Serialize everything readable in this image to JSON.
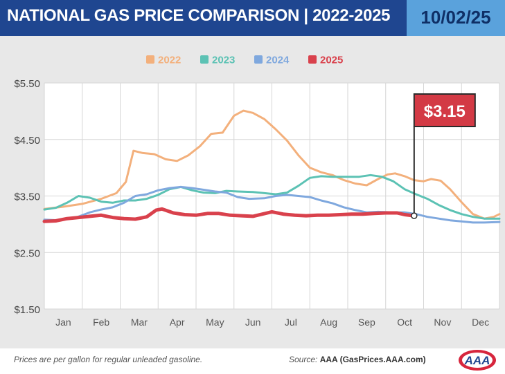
{
  "header": {
    "title": "NATIONAL GAS PRICE COMPARISON | 2022-2025",
    "date": "10/02/25"
  },
  "footer": {
    "note": "Prices are per gallon for regular unleaded gasoline.",
    "source_prefix": "Source:",
    "source_name": "AAA (GasPrices.AAA.com)",
    "logo_text": "AAA"
  },
  "colors": {
    "header_bg": "#1f4690",
    "date_bg": "#5aa2dc",
    "callout_bg": "#d33a45",
    "2022": "#f3b07c",
    "2023": "#5cc2b4",
    "2024": "#7fa8de",
    "2025": "#d9414c"
  },
  "chart_data": {
    "type": "line",
    "title": "",
    "xlabel": "",
    "ylabel": "",
    "categories": [
      "Jan",
      "Feb",
      "Mar",
      "Apr",
      "May",
      "Jun",
      "Jul",
      "Aug",
      "Sep",
      "Oct",
      "Nov",
      "Dec"
    ],
    "yticks": [
      "$5.50",
      "$4.50",
      "$3.50",
      "$2.50",
      "$1.50"
    ],
    "ylim": [
      1.5,
      5.5
    ],
    "legend_position": "top",
    "grid": true,
    "callout": {
      "label": "$3.15",
      "value": 3.15,
      "month": 9.75
    },
    "series": [
      {
        "name": "2022",
        "color": "#f3b07c",
        "points": [
          [
            0,
            3.27
          ],
          [
            0.5,
            3.31
          ],
          [
            1.0,
            3.36
          ],
          [
            1.5,
            3.45
          ],
          [
            1.9,
            3.55
          ],
          [
            2.15,
            3.75
          ],
          [
            2.35,
            4.3
          ],
          [
            2.6,
            4.26
          ],
          [
            2.9,
            4.24
          ],
          [
            3.2,
            4.15
          ],
          [
            3.5,
            4.12
          ],
          [
            3.8,
            4.22
          ],
          [
            4.1,
            4.38
          ],
          [
            4.4,
            4.6
          ],
          [
            4.7,
            4.62
          ],
          [
            5.0,
            4.92
          ],
          [
            5.25,
            5.01
          ],
          [
            5.5,
            4.97
          ],
          [
            5.8,
            4.86
          ],
          [
            6.1,
            4.68
          ],
          [
            6.4,
            4.48
          ],
          [
            6.7,
            4.22
          ],
          [
            7.0,
            4.0
          ],
          [
            7.3,
            3.92
          ],
          [
            7.6,
            3.87
          ],
          [
            7.9,
            3.78
          ],
          [
            8.2,
            3.72
          ],
          [
            8.5,
            3.69
          ],
          [
            8.8,
            3.8
          ],
          [
            9.05,
            3.88
          ],
          [
            9.25,
            3.9
          ],
          [
            9.5,
            3.85
          ],
          [
            9.75,
            3.78
          ],
          [
            10.0,
            3.76
          ],
          [
            10.2,
            3.8
          ],
          [
            10.45,
            3.77
          ],
          [
            10.7,
            3.62
          ],
          [
            11.0,
            3.39
          ],
          [
            11.3,
            3.18
          ],
          [
            11.6,
            3.1
          ],
          [
            11.85,
            3.13
          ],
          [
            12.0,
            3.18
          ]
        ]
      },
      {
        "name": "2023",
        "color": "#5cc2b4",
        "points": [
          [
            0,
            3.26
          ],
          [
            0.3,
            3.29
          ],
          [
            0.6,
            3.38
          ],
          [
            0.9,
            3.5
          ],
          [
            1.2,
            3.47
          ],
          [
            1.5,
            3.4
          ],
          [
            1.8,
            3.38
          ],
          [
            2.1,
            3.42
          ],
          [
            2.4,
            3.42
          ],
          [
            2.7,
            3.45
          ],
          [
            3.0,
            3.52
          ],
          [
            3.3,
            3.62
          ],
          [
            3.6,
            3.66
          ],
          [
            3.9,
            3.6
          ],
          [
            4.2,
            3.56
          ],
          [
            4.5,
            3.55
          ],
          [
            4.8,
            3.59
          ],
          [
            5.1,
            3.58
          ],
          [
            5.5,
            3.57
          ],
          [
            5.8,
            3.55
          ],
          [
            6.1,
            3.53
          ],
          [
            6.4,
            3.56
          ],
          [
            6.7,
            3.68
          ],
          [
            7.0,
            3.82
          ],
          [
            7.3,
            3.85
          ],
          [
            7.6,
            3.84
          ],
          [
            8.0,
            3.84
          ],
          [
            8.3,
            3.84
          ],
          [
            8.6,
            3.87
          ],
          [
            8.9,
            3.84
          ],
          [
            9.2,
            3.76
          ],
          [
            9.5,
            3.62
          ],
          [
            9.8,
            3.53
          ],
          [
            10.1,
            3.45
          ],
          [
            10.4,
            3.34
          ],
          [
            10.7,
            3.25
          ],
          [
            11.0,
            3.18
          ],
          [
            11.3,
            3.13
          ],
          [
            11.6,
            3.1
          ],
          [
            12.0,
            3.1
          ]
        ]
      },
      {
        "name": "2024",
        "color": "#7fa8de",
        "points": [
          [
            0,
            3.08
          ],
          [
            0.4,
            3.07
          ],
          [
            0.8,
            3.11
          ],
          [
            1.2,
            3.21
          ],
          [
            1.5,
            3.26
          ],
          [
            1.8,
            3.3
          ],
          [
            2.1,
            3.38
          ],
          [
            2.4,
            3.5
          ],
          [
            2.7,
            3.53
          ],
          [
            3.0,
            3.6
          ],
          [
            3.3,
            3.64
          ],
          [
            3.6,
            3.66
          ],
          [
            3.9,
            3.64
          ],
          [
            4.2,
            3.61
          ],
          [
            4.5,
            3.58
          ],
          [
            4.8,
            3.56
          ],
          [
            5.1,
            3.48
          ],
          [
            5.4,
            3.45
          ],
          [
            5.8,
            3.46
          ],
          [
            6.1,
            3.5
          ],
          [
            6.4,
            3.52
          ],
          [
            6.7,
            3.5
          ],
          [
            7.0,
            3.48
          ],
          [
            7.3,
            3.42
          ],
          [
            7.6,
            3.37
          ],
          [
            7.9,
            3.3
          ],
          [
            8.2,
            3.25
          ],
          [
            8.5,
            3.21
          ],
          [
            8.8,
            3.22
          ],
          [
            9.2,
            3.21
          ],
          [
            9.5,
            3.21
          ],
          [
            9.8,
            3.18
          ],
          [
            10.1,
            3.13
          ],
          [
            10.4,
            3.1
          ],
          [
            10.7,
            3.07
          ],
          [
            11.0,
            3.05
          ],
          [
            11.3,
            3.03
          ],
          [
            11.6,
            3.03
          ],
          [
            12.0,
            3.04
          ]
        ]
      },
      {
        "name": "2025",
        "color": "#d9414c",
        "points": [
          [
            0,
            3.05
          ],
          [
            0.3,
            3.06
          ],
          [
            0.6,
            3.1
          ],
          [
            0.9,
            3.12
          ],
          [
            1.2,
            3.14
          ],
          [
            1.5,
            3.16
          ],
          [
            1.8,
            3.12
          ],
          [
            2.1,
            3.1
          ],
          [
            2.4,
            3.09
          ],
          [
            2.7,
            3.13
          ],
          [
            2.95,
            3.25
          ],
          [
            3.1,
            3.27
          ],
          [
            3.4,
            3.2
          ],
          [
            3.7,
            3.17
          ],
          [
            4.0,
            3.16
          ],
          [
            4.3,
            3.19
          ],
          [
            4.6,
            3.19
          ],
          [
            4.9,
            3.16
          ],
          [
            5.2,
            3.15
          ],
          [
            5.5,
            3.14
          ],
          [
            5.75,
            3.18
          ],
          [
            6.0,
            3.22
          ],
          [
            6.3,
            3.18
          ],
          [
            6.6,
            3.16
          ],
          [
            6.9,
            3.15
          ],
          [
            7.2,
            3.16
          ],
          [
            7.5,
            3.16
          ],
          [
            7.8,
            3.17
          ],
          [
            8.1,
            3.18
          ],
          [
            8.4,
            3.18
          ],
          [
            8.7,
            3.19
          ],
          [
            9.0,
            3.2
          ],
          [
            9.3,
            3.2
          ],
          [
            9.5,
            3.17
          ],
          [
            9.75,
            3.15
          ]
        ]
      }
    ]
  }
}
